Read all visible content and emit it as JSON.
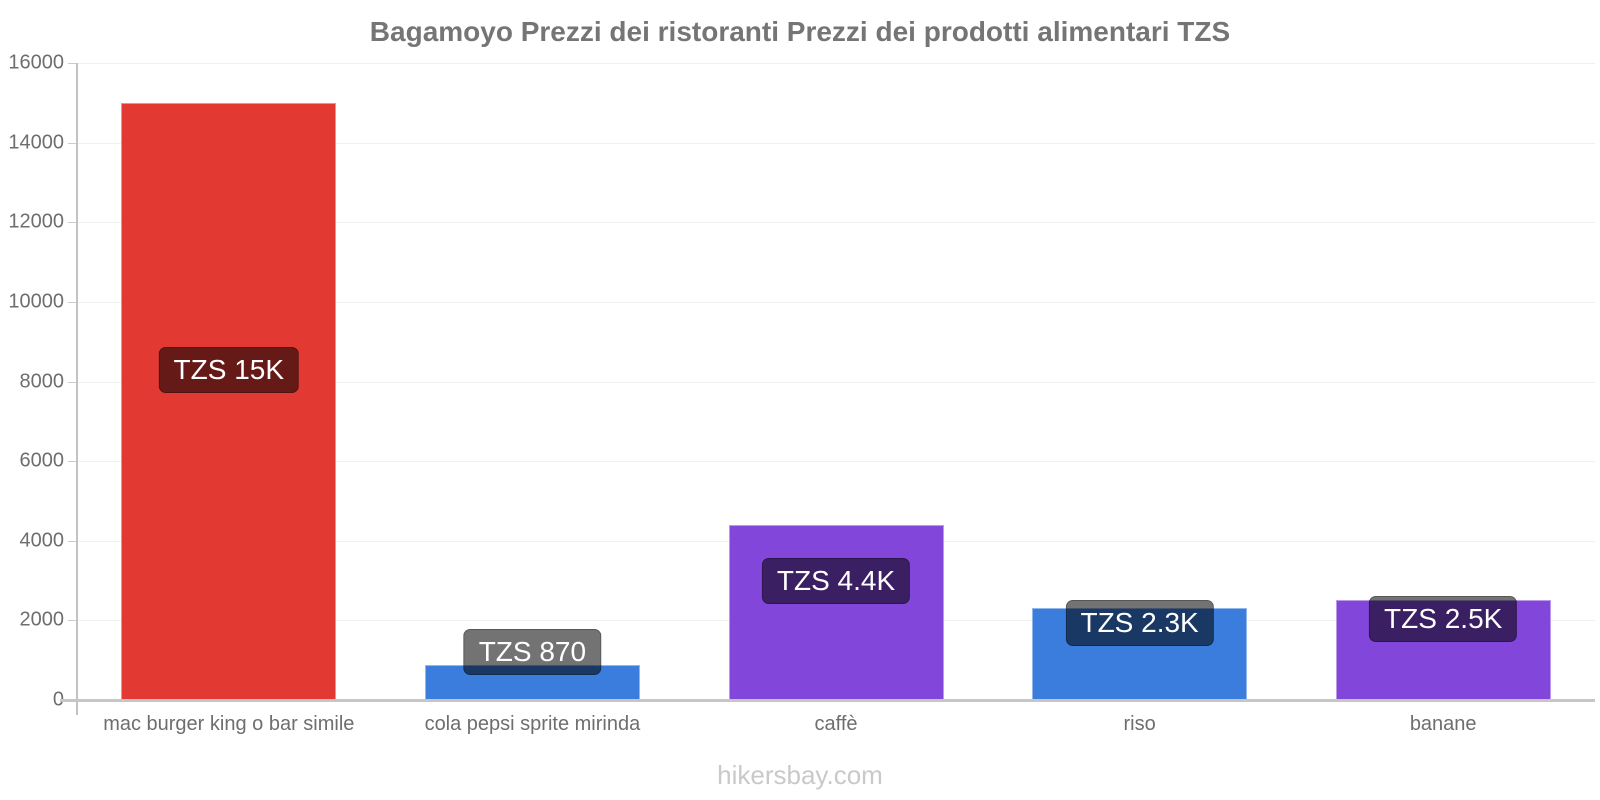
{
  "title": "Bagamoyo Prezzi dei ristoranti Prezzi dei prodotti alimentari TZS",
  "footer": "hikersbay.com",
  "colors": {
    "red_bar": "#e23a33",
    "blue_bar": "#3b7ddd",
    "purple_bar": "#8246da",
    "title_text": "#757575",
    "tick_text": "#6e6e6e",
    "axis_line": "#c6c6c6",
    "gridline": "#f0f0f0",
    "value_label_bg": "rgba(0,0,0,0.55)",
    "value_label_text": "#ffffff",
    "watermark_text": "#c9c9c9"
  },
  "chart_data": {
    "type": "bar",
    "title": "Bagamoyo Prezzi dei ristoranti Prezzi dei prodotti alimentari TZS",
    "xlabel": "",
    "ylabel": "",
    "currency": "TZS",
    "categories": [
      "mac burger king o bar simile",
      "cola pepsi sprite mirinda",
      "caffè",
      "riso",
      "banane"
    ],
    "values": [
      15000,
      870,
      4400,
      2300,
      2500
    ],
    "value_labels": [
      "TZS 15K",
      "TZS 870",
      "TZS 4.4K",
      "TZS 2.3K",
      "TZS 2.5K"
    ],
    "bar_colors": [
      "#e23a33",
      "#3b7ddd",
      "#8246da",
      "#3b7ddd",
      "#8246da"
    ],
    "ylim": [
      0,
      16000
    ],
    "yticks": [
      0,
      2000,
      4000,
      6000,
      8000,
      10000,
      12000,
      14000,
      16000
    ],
    "grid": true,
    "legend_position": "none",
    "watermark": "hikersbay.com"
  }
}
